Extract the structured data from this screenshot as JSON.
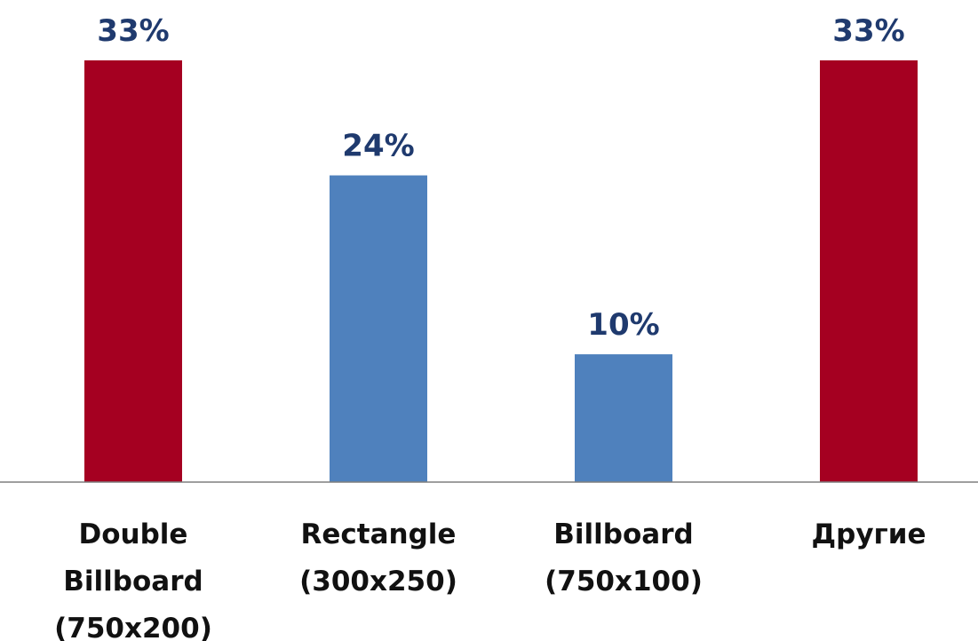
{
  "chart_data": {
    "type": "bar",
    "categories": [
      [
        "Double",
        "Billboard",
        "(750x200)"
      ],
      [
        "Rectangle",
        "(300x250)"
      ],
      [
        "Billboard",
        "(750x100)"
      ],
      [
        "Другие"
      ]
    ],
    "values": [
      33,
      24,
      10,
      33
    ],
    "value_labels": [
      "33%",
      "24%",
      "10%",
      "33%"
    ],
    "ylim": [
      0,
      33
    ],
    "grid": false,
    "colors": {
      "highlight": "#A50021",
      "normal": "#4F81BD",
      "label": "#1F3A6E",
      "axis": "#7F7F7F"
    },
    "bar_colors": [
      "#A50021",
      "#4F81BD",
      "#4F81BD",
      "#A50021"
    ]
  }
}
